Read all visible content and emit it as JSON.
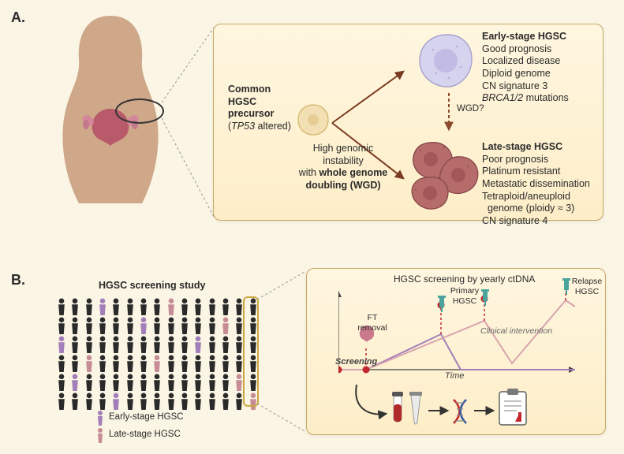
{
  "panelA": {
    "label": "A.",
    "precursor": {
      "title": "Common HGSC precursor",
      "subtitle_prefix": "(",
      "subtitle_gene": "TP53",
      "subtitle_suffix": " altered)"
    },
    "wgd_pathway": {
      "line1": "High genomic",
      "line2": "instability",
      "line3_pre": "with ",
      "line3_bold": "whole genome doubling (WGD)"
    },
    "wgd_arrow_label": "WGD?",
    "early": {
      "title": "Early-stage HGSC",
      "bullets": [
        "Good prognosis",
        "Localized disease",
        "Diploid genome",
        "CN signature 3"
      ],
      "brca_line_gene": "BRCA1/2",
      "brca_line_suffix": " mutations"
    },
    "late": {
      "title": "Late-stage HGSC",
      "bullets": [
        "Poor prognosis",
        "Platinum resistant",
        "Metastatic dissemination",
        "Tetraploid/aneuploid",
        "  genome (ploidy ≈ 3)",
        "CN signature 4"
      ]
    },
    "cells": {
      "precursor": {
        "fill": "#f2dfb3",
        "stroke": "#d2b36b"
      },
      "early": {
        "fill": "#d6d3ee",
        "stroke": "#a6a0cf",
        "nucleus": "#c2bce4"
      },
      "late": {
        "fill": "#b76c6c",
        "stroke": "#8a4b4b",
        "nucleus": "#a25858"
      }
    },
    "arrows": {
      "bifurcation_color": "#7a3c20",
      "wgd_color": "#8a4b2e"
    }
  },
  "panelB": {
    "label": "B.",
    "study_title": "HGSC screening study",
    "legend_early": "Early-stage HGSC",
    "legend_late": "Late-stage HGSC",
    "legend_colors": {
      "early": "#a37fb9",
      "late": "#c78d97",
      "default": "#2a2a2a"
    },
    "crowd": {
      "rows": 6,
      "cols": 15,
      "early_positions": [
        [
          0,
          3
        ],
        [
          1,
          6
        ],
        [
          2,
          10
        ],
        [
          4,
          1
        ],
        [
          5,
          4
        ],
        [
          2,
          0
        ]
      ],
      "late_positions": [
        [
          0,
          8
        ],
        [
          1,
          12
        ],
        [
          3,
          7
        ],
        [
          4,
          13
        ],
        [
          5,
          14
        ],
        [
          3,
          2
        ]
      ]
    },
    "callout_title": "HGSC screening by yearly ctDNA",
    "chart": {
      "x_label": "Time",
      "screening_label": "Screening",
      "intervention_label": "Clinical intervention",
      "events": {
        "ft_removal": "FT removal",
        "primary": "Primary HGSC",
        "relapse": "Relapse HGSC"
      },
      "event_positions_x": [
        35,
        130,
        185,
        288
      ],
      "curves": {
        "purple": {
          "color": "#a37fb9",
          "points": [
            [
              0,
              100
            ],
            [
              35,
              100
            ],
            [
              130,
              55
            ],
            [
              155,
              100
            ],
            [
              300,
              100
            ]
          ]
        },
        "pink": {
          "color": "#d8a3ad",
          "points": [
            [
              0,
              100
            ],
            [
              35,
              100
            ],
            [
              185,
              38
            ],
            [
              220,
              92
            ],
            [
              288,
              12
            ],
            [
              300,
              20
            ]
          ]
        }
      },
      "dot_color": "#c1272d",
      "syringe_color": "#4aa49c"
    },
    "bottom_icons": {
      "blood_tube": "#b02a2a",
      "lab_tube": "#d9d9d9",
      "dna": [
        "#c1272d",
        "#3557a0"
      ],
      "clipboard": "#5a5a5a"
    }
  },
  "layout": {
    "bg": "#faf5e4",
    "callout_bg_top": "#fff6e0",
    "callout_bg_bot": "#fdeec8",
    "callout_border": "#c4a766"
  }
}
